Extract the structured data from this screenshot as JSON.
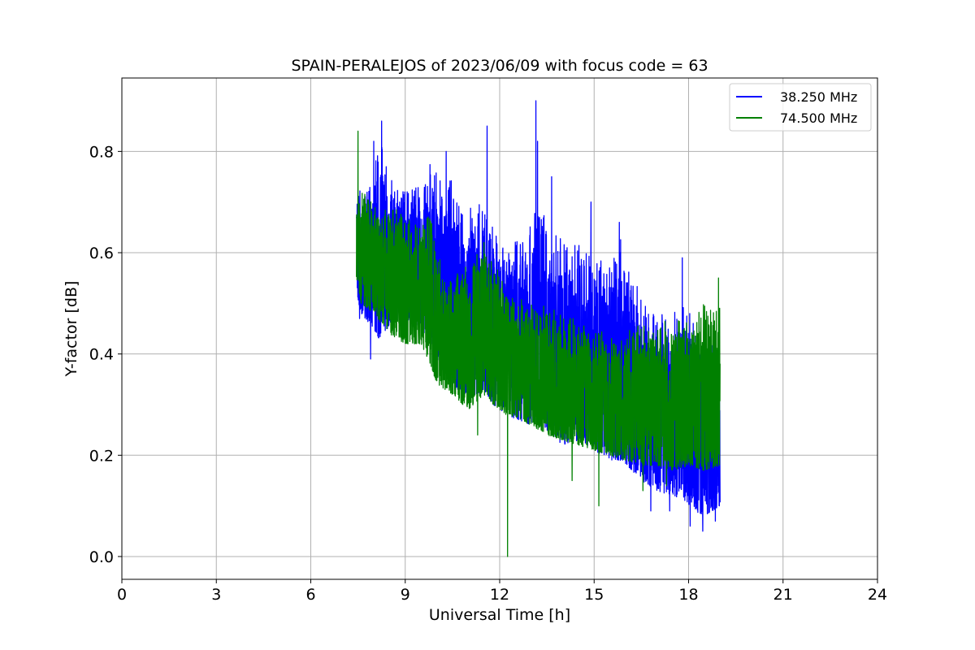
{
  "chart_data": {
    "type": "line",
    "title": "SPAIN-PERALEJOS of 2023/06/09 with focus code = 63",
    "xlabel": "Universal Time [h]",
    "ylabel": "Y-factor [dB]",
    "xlim": [
      0,
      24
    ],
    "ylim": [
      -0.045,
      0.945
    ],
    "xticks": [
      0,
      3,
      6,
      9,
      12,
      15,
      18,
      21,
      24
    ],
    "yticks": [
      0.0,
      0.2,
      0.4,
      0.6,
      0.8
    ],
    "ytick_labels": [
      "0.0",
      "0.2",
      "0.4",
      "0.6",
      "0.8"
    ],
    "grid": true,
    "legend_position": "top-right",
    "series": [
      {
        "name": "38.250 MHz",
        "color": "#0000ff",
        "noisy": true,
        "x_range": [
          7.45,
          19.0
        ],
        "envelope_x": [
          7.45,
          7.6,
          8.0,
          8.25,
          8.5,
          9.0,
          9.5,
          9.8,
          10.0,
          10.5,
          11.0,
          11.5,
          11.8,
          12.2,
          12.6,
          13.0,
          13.2,
          13.5,
          14.0,
          14.5,
          15.0,
          15.5,
          15.9,
          16.2,
          16.5,
          17.0,
          17.5,
          17.9,
          18.2,
          18.5,
          19.0
        ],
        "envelope_low": [
          0.52,
          0.48,
          0.45,
          0.42,
          0.46,
          0.47,
          0.45,
          0.42,
          0.38,
          0.34,
          0.31,
          0.33,
          0.3,
          0.28,
          0.27,
          0.26,
          0.27,
          0.25,
          0.22,
          0.23,
          0.21,
          0.19,
          0.19,
          0.17,
          0.15,
          0.13,
          0.12,
          0.11,
          0.09,
          0.08,
          0.1
        ],
        "envelope_high": [
          0.72,
          0.74,
          0.78,
          0.84,
          0.76,
          0.74,
          0.75,
          0.78,
          0.77,
          0.74,
          0.7,
          0.72,
          0.67,
          0.62,
          0.63,
          0.66,
          0.85,
          0.64,
          0.64,
          0.62,
          0.6,
          0.6,
          0.64,
          0.55,
          0.52,
          0.5,
          0.48,
          0.52,
          0.46,
          0.45,
          0.42
        ],
        "peaks": [
          [
            8.0,
            0.82
          ],
          [
            8.25,
            0.86
          ],
          [
            10.3,
            0.8
          ],
          [
            11.6,
            0.85
          ],
          [
            13.15,
            0.9
          ],
          [
            13.65,
            0.75
          ],
          [
            14.9,
            0.7
          ],
          [
            15.8,
            0.66
          ],
          [
            17.8,
            0.59
          ]
        ],
        "dips": [
          [
            7.55,
            0.47
          ],
          [
            7.9,
            0.39
          ],
          [
            16.8,
            0.09
          ],
          [
            17.4,
            0.09
          ],
          [
            18.05,
            0.06
          ],
          [
            18.45,
            0.05
          ],
          [
            18.85,
            0.07
          ]
        ]
      },
      {
        "name": "74.500 MHz",
        "color": "#008000",
        "noisy": true,
        "x_range": [
          7.45,
          19.0
        ],
        "envelope_x": [
          7.45,
          7.6,
          8.0,
          8.5,
          9.0,
          9.5,
          9.8,
          10.0,
          10.5,
          11.0,
          11.5,
          11.8,
          12.2,
          12.6,
          13.0,
          13.5,
          14.0,
          14.5,
          15.0,
          15.5,
          16.0,
          16.5,
          17.0,
          17.5,
          18.0,
          18.5,
          19.0
        ],
        "envelope_low": [
          0.55,
          0.5,
          0.48,
          0.44,
          0.42,
          0.42,
          0.38,
          0.34,
          0.32,
          0.29,
          0.32,
          0.3,
          0.28,
          0.27,
          0.26,
          0.24,
          0.23,
          0.22,
          0.21,
          0.2,
          0.19,
          0.18,
          0.18,
          0.17,
          0.18,
          0.17,
          0.18
        ],
        "envelope_high": [
          0.7,
          0.74,
          0.7,
          0.7,
          0.68,
          0.66,
          0.68,
          0.6,
          0.56,
          0.58,
          0.62,
          0.6,
          0.55,
          0.52,
          0.5,
          0.5,
          0.48,
          0.47,
          0.45,
          0.44,
          0.45,
          0.46,
          0.46,
          0.47,
          0.48,
          0.5,
          0.52
        ],
        "peaks": [
          [
            7.5,
            0.84
          ],
          [
            11.5,
            0.62
          ],
          [
            18.95,
            0.55
          ]
        ],
        "dips": [
          [
            12.25,
            0.0
          ],
          [
            11.3,
            0.24
          ],
          [
            14.3,
            0.15
          ],
          [
            15.15,
            0.1
          ],
          [
            16.55,
            0.13
          ],
          [
            17.3,
            0.14
          ]
        ]
      }
    ]
  }
}
